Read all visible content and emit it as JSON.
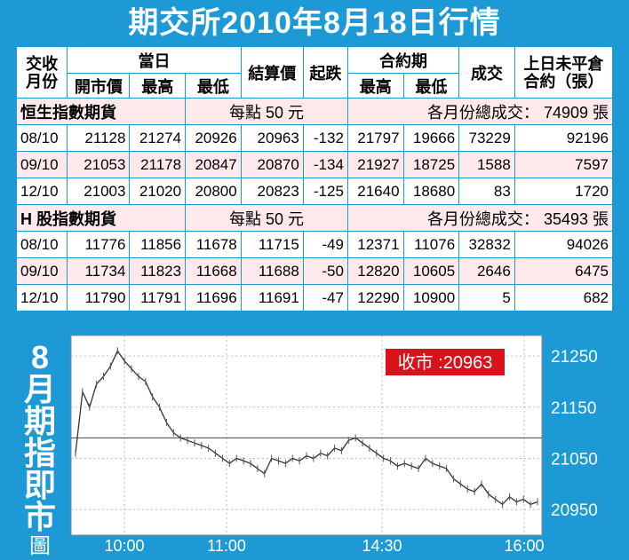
{
  "title": "期交所2010年8月18日行情",
  "table": {
    "header": {
      "month": "交收\n月份",
      "today": "當日",
      "open": "開市價",
      "high": "最高",
      "low": "最低",
      "settle": "結算價",
      "change": "起跌",
      "contract_period": "合約期",
      "cp_high": "最高",
      "cp_low": "最低",
      "volume": "成交",
      "open_interest": "上日未平倉\n合約（張）"
    },
    "sections": [
      {
        "name": "恒生指數期貨",
        "point_value": "每點 50 元",
        "total": "各月份總成交： 74909 張",
        "rows": [
          [
            "08/10",
            "21128",
            "21274",
            "20926",
            "20963",
            "-132",
            "21797",
            "19666",
            "73229",
            "92196"
          ],
          [
            "09/10",
            "21053",
            "21178",
            "20847",
            "20870",
            "-134",
            "21927",
            "18725",
            "1588",
            "7597"
          ],
          [
            "12/10",
            "21003",
            "21020",
            "20800",
            "20823",
            "-125",
            "21640",
            "18680",
            "83",
            "1720"
          ]
        ]
      },
      {
        "name": "H 股指數期貨",
        "point_value": "每點 50 元",
        "total": "各月份總成交： 35493 張",
        "rows": [
          [
            "08/10",
            "11776",
            "11856",
            "11678",
            "11715",
            "-49",
            "12371",
            "11076",
            "32832",
            "94026"
          ],
          [
            "09/10",
            "11734",
            "11823",
            "11668",
            "11688",
            "-50",
            "12820",
            "10605",
            "2646",
            "6475"
          ],
          [
            "12/10",
            "11790",
            "11791",
            "11696",
            "11691",
            "-47",
            "12290",
            "10900",
            "5",
            "682"
          ]
        ]
      }
    ]
  },
  "side_label": [
    "8",
    "月",
    "期",
    "指",
    "即",
    "市",
    "圖"
  ],
  "colors": {
    "background": "#1d9ad6",
    "closing_box": "#d9131b",
    "price_line": "#333333"
  },
  "chart_data": {
    "type": "line",
    "title": "8月期指即市圖",
    "annotation": "收市 :20963",
    "x_tick_labels": [
      "10:00",
      "11:00",
      "14:30",
      "16:00"
    ],
    "y_ticks": [
      21250,
      21150,
      21050,
      20950
    ],
    "ylim": [
      20900,
      21290
    ],
    "reference_line": 21090,
    "grid": true,
    "series": [
      {
        "values": [
          21060,
          21180,
          21150,
          21195,
          21210,
          21230,
          21260,
          21240,
          21225,
          21210,
          21200,
          21170,
          21150,
          21120,
          21100,
          21090,
          21085,
          21080,
          21075,
          21070,
          21060,
          21050,
          21040,
          21050,
          21045,
          21040,
          21030,
          21020,
          21050,
          21045,
          21040,
          21050,
          21045,
          21055,
          21050,
          21060,
          21055,
          21070,
          21065,
          21085,
          21090,
          21080,
          21070,
          21060,
          21050,
          21045,
          21035,
          21040,
          21035,
          21030,
          21050,
          21040,
          21035,
          21030,
          21010,
          21000,
          20990,
          20985,
          21000,
          20980,
          20970,
          20960,
          20975,
          20965,
          20970,
          20960,
          20965
        ]
      }
    ]
  }
}
